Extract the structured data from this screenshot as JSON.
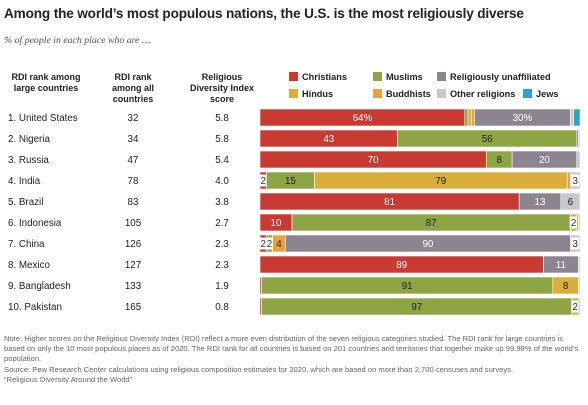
{
  "title": "Among the world’s most populous nations, the U.S. is the most religiously diverse",
  "subtitle": "% of people in each place who are …",
  "columns": {
    "rank_large": "RDI rank among large countries",
    "rank_all": "RDI rank among all countries",
    "score": "Religious Diversity Index score"
  },
  "chart_data": {
    "type": "bar",
    "orientation": "horizontal",
    "stacked": true,
    "xlim": [
      0,
      100
    ],
    "categories": [
      "1. United States",
      "2. Nigeria",
      "3. Russia",
      "4. India",
      "5. Brazil",
      "6. Indonesia",
      "7. China",
      "8. Mexico",
      "9. Bangladesh",
      "10. Pakistan"
    ],
    "rdi_rank_all": [
      "32",
      "34",
      "47",
      "78",
      "83",
      "105",
      "126",
      "127",
      "133",
      "165"
    ],
    "rdi_score": [
      "5.8",
      "5.8",
      "5.4",
      "4.0",
      "3.8",
      "2.7",
      "2.3",
      "2.3",
      "1.9",
      "0.8"
    ],
    "series": [
      {
        "name": "Christians",
        "color": "#c93a32",
        "values": [
          64,
          43,
          70,
          2,
          81,
          10,
          2,
          89,
          0.5,
          0.5
        ],
        "labels": [
          "64%",
          "43",
          "70",
          "2",
          "81",
          "10",
          "2",
          "89",
          "",
          ""
        ]
      },
      {
        "name": "Muslims",
        "color": "#8ea545",
        "values": [
          1,
          56,
          8,
          15,
          0,
          87,
          2,
          0,
          91,
          97
        ],
        "labels": [
          "",
          "56",
          "8",
          "15",
          "",
          "87",
          "2",
          "",
          "91",
          "97"
        ]
      },
      {
        "name": "Hindus",
        "color": "#d9ae3a",
        "values": [
          1,
          0,
          0,
          79,
          0,
          2,
          0,
          0,
          8,
          2
        ],
        "labels": [
          "",
          "",
          "",
          "79",
          "",
          "2",
          "",
          "",
          "8",
          "2"
        ]
      },
      {
        "name": "Buddhists",
        "color": "#eaa23a",
        "values": [
          1,
          0,
          0,
          1,
          0,
          0.5,
          4,
          0,
          0,
          0
        ],
        "labels": [
          "",
          "",
          "",
          "",
          "",
          "",
          "4",
          "",
          "",
          ""
        ]
      },
      {
        "name": "Religiously unaffiliated",
        "color": "#8c8590",
        "values": [
          30,
          0.5,
          20,
          0,
          13,
          0,
          90,
          11,
          0,
          0
        ],
        "labels": [
          "30%",
          "",
          "20",
          "",
          "13",
          "",
          "90",
          "11",
          "",
          ""
        ]
      },
      {
        "name": "Other religions",
        "color": "#c9c6cd",
        "values": [
          1,
          0.5,
          1,
          3,
          6,
          0.5,
          3,
          0.5,
          0.5,
          0.5
        ],
        "labels": [
          "",
          "",
          "",
          "3",
          "6",
          "",
          "3",
          "",
          "",
          ""
        ]
      },
      {
        "name": "Jews",
        "color": "#2ea3c8",
        "values": [
          2,
          0,
          0,
          0,
          0,
          0,
          0,
          0,
          0,
          0
        ],
        "labels": [
          "",
          "",
          "",
          "",
          "",
          "",
          "",
          "",
          "",
          ""
        ]
      }
    ],
    "legend_order": [
      "Christians",
      "Muslims",
      "Religiously unaffiliated",
      "Hindus",
      "Buddhists",
      "Other religions",
      "Jews"
    ]
  },
  "notes": {
    "note": "Note: Higher scores on the Religious Diversity Index (RDI) reflect a more even distribution of the seven religious categories studied. The RDI rank for large countries is based on only the 10 most populous places as of 2020. The RDI rank for all countries is based on 201 countries and territories that together make up 99.98% of the world’s population.",
    "source": "Source: Pew Research Center calculations using religious composition estimates for 2020, which are based on more than 2,700 censuses and surveys.",
    "report": "“Religious Diversity Around the World”"
  }
}
